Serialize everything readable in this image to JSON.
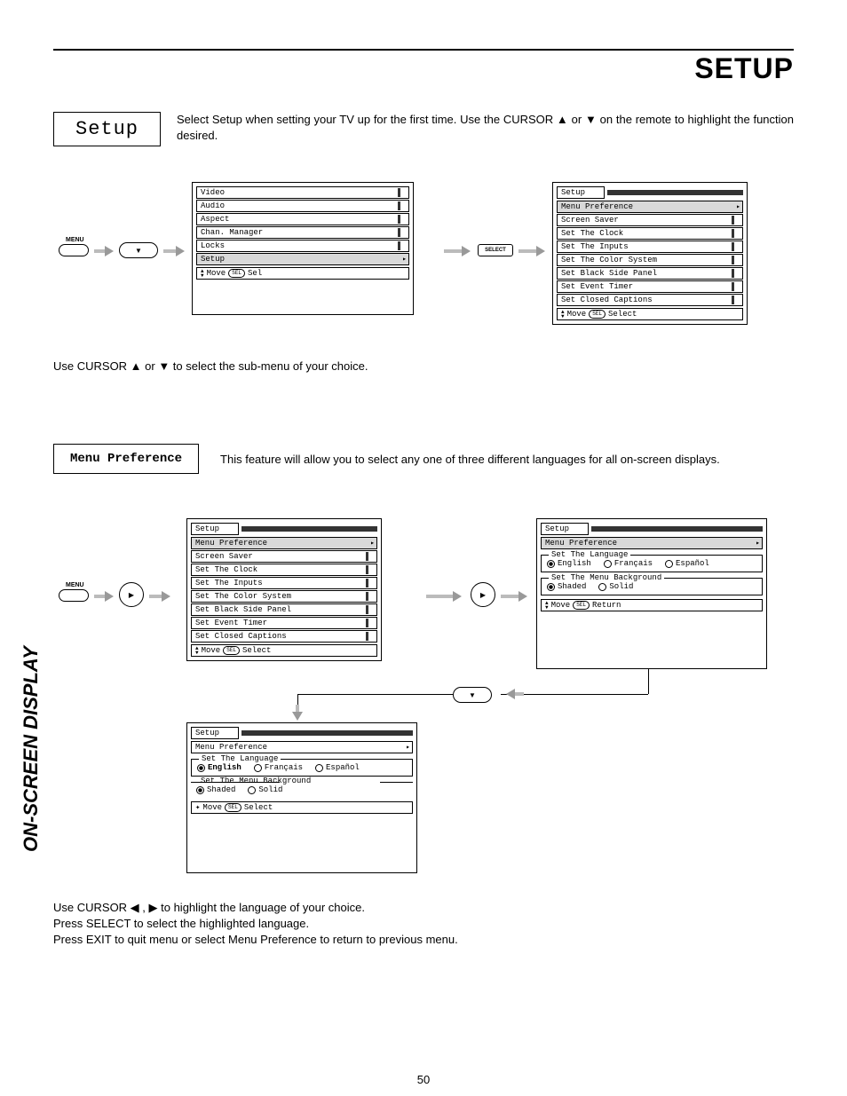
{
  "header": {
    "title": "SETUP"
  },
  "intro": {
    "box": "Setup",
    "text": "Select Setup when setting your TV up for the first time.  Use the CURSOR ▲ or ▼ on the remote to highlight the function desired."
  },
  "remote": {
    "menu_label": "MENU",
    "select_label": "SELECT"
  },
  "main_menu": {
    "items": [
      "Video",
      "Audio",
      "Aspect",
      "Chan. Manager",
      "Locks",
      "Setup"
    ],
    "selected_index": 5,
    "footer_move": "Move",
    "footer_sel": "Sel"
  },
  "setup_menu": {
    "title": "Setup",
    "items": [
      "Menu Preference",
      "Screen Saver",
      "Set The Clock",
      "Set The Inputs",
      "Set The Color System",
      "Set Black Side Panel",
      "Set Event Timer",
      "Set Closed Captions"
    ],
    "selected_index": 0,
    "footer_move": "Move",
    "footer_select": "Select"
  },
  "sub_instruction": "Use CURSOR ▲ or ▼ to select the sub-menu of your choice.",
  "pref": {
    "box": "Menu Preference",
    "text": "This feature will allow you to select any one of three different languages for all on-screen displays."
  },
  "pref_panel": {
    "title": "Setup",
    "subtitle": "Menu Preference",
    "lang_group_label": "Set The Language",
    "languages": [
      "English",
      "Français",
      "Español"
    ],
    "lang_selected_index": 0,
    "bg_group_label": "Set The Menu Background",
    "backgrounds": [
      "Shaded",
      "Solid"
    ],
    "bg_selected_index": 0,
    "footer_move": "Move",
    "footer_return": "Return",
    "footer_select": "Select"
  },
  "end": {
    "line1": "Use CURSOR ◀ , ▶ to highlight the language of your choice.",
    "line2": "Press SELECT to select the highlighted language.",
    "line3": "Press EXIT to quit menu or select Menu Preference to return to previous menu."
  },
  "sidebar_label": "ON-SCREEN DISPLAY",
  "page_number": "50",
  "sel_pill": "SEL",
  "colors": {
    "arrow": "#bbbbbb",
    "bar": "#333333",
    "selected_bg": "#d9d9d9"
  }
}
